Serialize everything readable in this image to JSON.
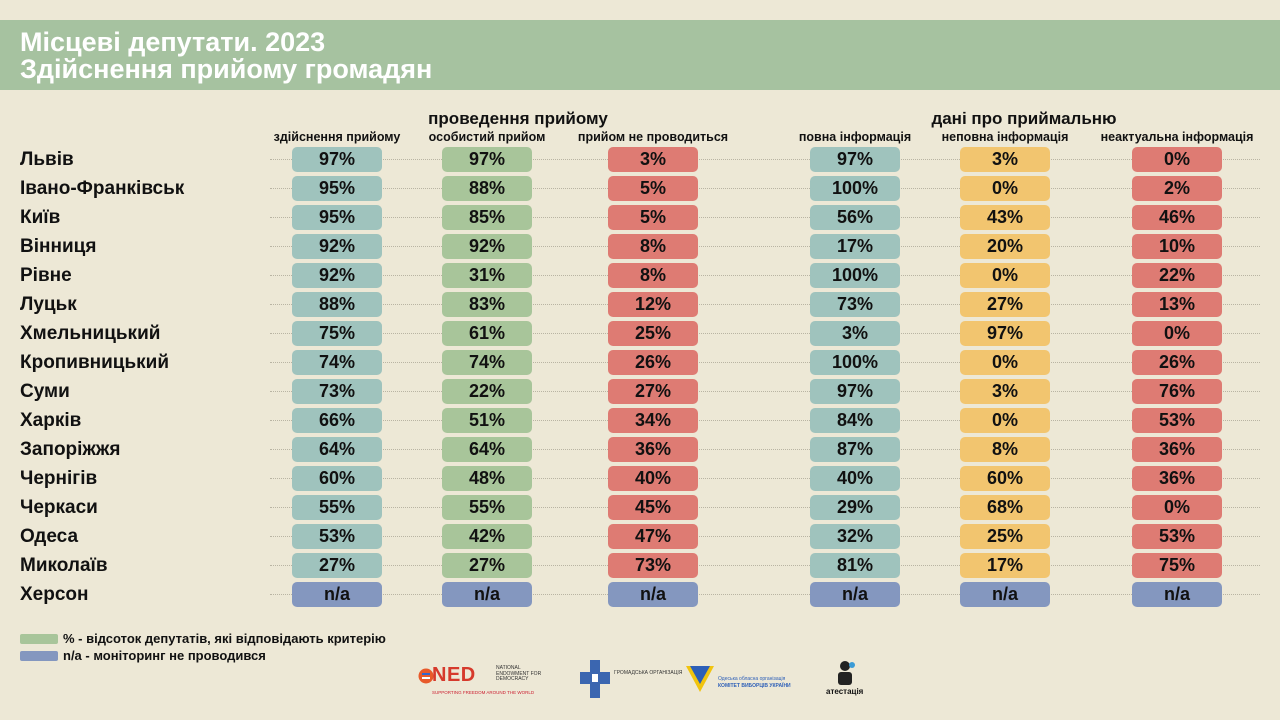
{
  "header": {
    "title_line1": "Місцеві депутати. 2023",
    "title_line2": "Здійснення прийому громадян"
  },
  "colors": {
    "background": "#ede8d6",
    "header": "#a6c2a0",
    "blue_green": "#9fc3bd",
    "green": "#a8c59a",
    "red": "#de7b73",
    "yellow": "#f2c56f",
    "na": "#8497bf"
  },
  "chart_data": {
    "type": "table",
    "groups": [
      "проведення прийому",
      "дані про приймальню"
    ],
    "columns": [
      "здійснення прийому",
      "особистий прийом",
      "прийом не проводиться",
      "повна інформація",
      "неповна інформація",
      "неактуальна інформація"
    ],
    "rows": [
      {
        "city": "Львів",
        "values": [
          "97%",
          "97%",
          "3%",
          "97%",
          "3%",
          "0%"
        ]
      },
      {
        "city": "Івано-Франківськ",
        "values": [
          "95%",
          "88%",
          "5%",
          "100%",
          "0%",
          "2%"
        ]
      },
      {
        "city": "Київ",
        "values": [
          "95%",
          "85%",
          "5%",
          "56%",
          "43%",
          "46%"
        ]
      },
      {
        "city": "Вінниця",
        "values": [
          "92%",
          "92%",
          "8%",
          "17%",
          "20%",
          "10%"
        ]
      },
      {
        "city": "Рівне",
        "values": [
          "92%",
          "31%",
          "8%",
          "100%",
          "0%",
          "22%"
        ]
      },
      {
        "city": "Луцьк",
        "values": [
          "88%",
          "83%",
          "12%",
          "73%",
          "27%",
          "13%"
        ]
      },
      {
        "city": "Хмельницький",
        "values": [
          "75%",
          "61%",
          "25%",
          "3%",
          "97%",
          "0%"
        ]
      },
      {
        "city": "Кропивницький",
        "values": [
          "74%",
          "74%",
          "26%",
          "100%",
          "0%",
          "26%"
        ]
      },
      {
        "city": "Суми",
        "values": [
          "73%",
          "22%",
          "27%",
          "97%",
          "3%",
          "76%"
        ]
      },
      {
        "city": "Харків",
        "values": [
          "66%",
          "51%",
          "34%",
          "84%",
          "0%",
          "53%"
        ]
      },
      {
        "city": "Запоріжжя",
        "values": [
          "64%",
          "64%",
          "36%",
          "87%",
          "8%",
          "36%"
        ]
      },
      {
        "city": "Чернігів",
        "values": [
          "60%",
          "48%",
          "40%",
          "40%",
          "60%",
          "36%"
        ]
      },
      {
        "city": "Черкаси",
        "values": [
          "55%",
          "55%",
          "45%",
          "29%",
          "68%",
          "0%"
        ]
      },
      {
        "city": "Одеса",
        "values": [
          "53%",
          "42%",
          "47%",
          "32%",
          "25%",
          "53%"
        ]
      },
      {
        "city": "Миколаїв",
        "values": [
          "27%",
          "27%",
          "73%",
          "81%",
          "17%",
          "75%"
        ]
      },
      {
        "city": "Херсон",
        "values": [
          "n/a",
          "n/a",
          "n/a",
          "n/a",
          "n/a",
          "n/a"
        ]
      }
    ]
  },
  "legend": [
    {
      "text": "% - відсоток депутатів, які відповідають критерію",
      "color": "#a8c59a"
    },
    {
      "text": "n/a - моніторинг не проводився",
      "color": "#8497bf"
    }
  ],
  "logos": {
    "ned_word": "NED",
    "ned_sub": "NATIONAL ENDOWMENT FOR DEMOCRACY",
    "ned_tag": "SUPPORTING FREEDOM AROUND THE WORLD",
    "org2_text": "ГРОМАДСЬКА ОРГАНІЗАЦІЯ",
    "cvu_line1": "Одеська обласна організація",
    "cvu_line2": "КОМІТЕТ ВИБОРЦІВ УКРАЇНИ",
    "atestatsiia": "атестація"
  }
}
